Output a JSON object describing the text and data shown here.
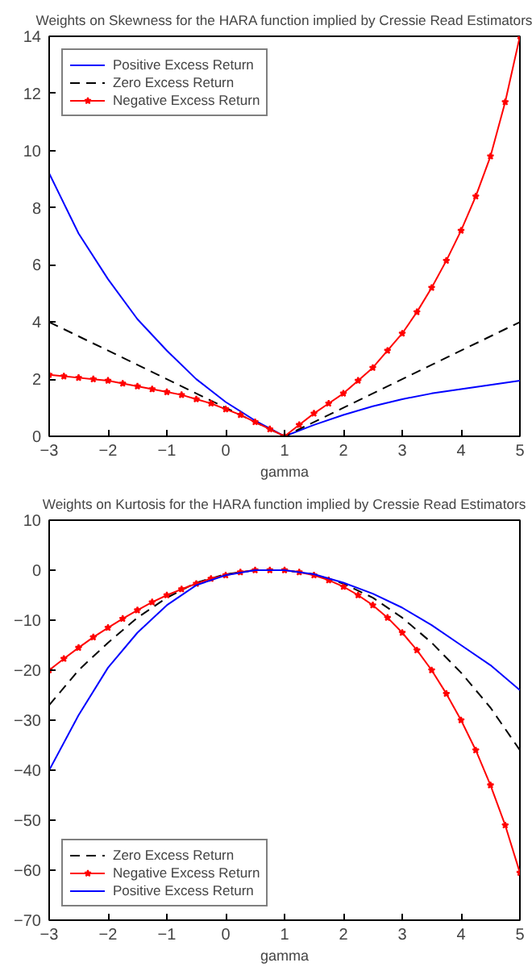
{
  "chart_data": [
    {
      "type": "line",
      "title": "Weights on Skewness for the HARA function implied by Cressie Read Estimators",
      "xlabel": "gamma",
      "xlim": [
        -3,
        5
      ],
      "ylim": [
        0,
        14
      ],
      "xticks": [
        -3,
        -2,
        -1,
        0,
        1,
        2,
        3,
        4,
        5
      ],
      "yticks": [
        0,
        2,
        4,
        6,
        8,
        10,
        12,
        14
      ],
      "grid": false,
      "legend": "top left",
      "series": [
        {
          "name": "Positive Excess Return",
          "color": "#0000ff",
          "line_style": "solid",
          "marker": "none",
          "x": [
            -3,
            -2.5,
            -2,
            -1.5,
            -1,
            -0.5,
            0,
            0.5,
            1,
            1.5,
            2,
            2.5,
            3,
            3.5,
            4,
            4.5,
            5
          ],
          "values": [
            9.2,
            7.1,
            5.5,
            4.1,
            3.0,
            2.0,
            1.2,
            0.55,
            0,
            0.4,
            0.75,
            1.05,
            1.3,
            1.5,
            1.65,
            1.8,
            1.95
          ]
        },
        {
          "name": "Zero Excess Return",
          "color": "#000000",
          "line_style": "dashed",
          "marker": "none",
          "x": [
            -3,
            1,
            5
          ],
          "values": [
            4,
            0,
            4
          ]
        },
        {
          "name": "Negative Excess Return",
          "color": "#ff0000",
          "line_style": "solid",
          "marker": "star",
          "x": [
            -3,
            -2.75,
            -2.5,
            -2.25,
            -2,
            -1.75,
            -1.5,
            -1.25,
            -1,
            -0.75,
            -0.5,
            -0.25,
            0,
            0.25,
            0.5,
            0.75,
            1,
            1.25,
            1.5,
            1.75,
            2,
            2.25,
            2.5,
            2.75,
            3,
            3.25,
            3.5,
            3.75,
            4,
            4.25,
            4.5,
            4.75,
            5
          ],
          "values": [
            2.15,
            2.1,
            2.05,
            2.0,
            1.95,
            1.85,
            1.75,
            1.65,
            1.55,
            1.45,
            1.3,
            1.15,
            0.95,
            0.75,
            0.5,
            0.25,
            0,
            0.4,
            0.8,
            1.15,
            1.5,
            1.95,
            2.4,
            3.0,
            3.6,
            4.35,
            5.2,
            6.15,
            7.2,
            8.4,
            9.8,
            11.7,
            14
          ]
        }
      ]
    },
    {
      "type": "line",
      "title": "Weights on Kurtosis for the HARA function implied by Cressie Read Estimators",
      "xlabel": "gamma",
      "xlim": [
        -3,
        5
      ],
      "ylim": [
        -70,
        10
      ],
      "xticks": [
        -3,
        -2,
        -1,
        0,
        1,
        2,
        3,
        4,
        5
      ],
      "yticks": [
        -70,
        -60,
        -50,
        -40,
        -30,
        -20,
        -10,
        0,
        10
      ],
      "grid": false,
      "legend": "bottom left",
      "series": [
        {
          "name": "Zero Excess Return",
          "color": "#000000",
          "line_style": "dashed",
          "marker": "none",
          "x": [
            -3,
            -2.5,
            -2,
            -1.5,
            -1,
            -0.5,
            0,
            0.5,
            1,
            1.5,
            2,
            2.5,
            3,
            3.5,
            4,
            4.5,
            5
          ],
          "values": [
            -27,
            -20,
            -14.5,
            -9.5,
            -5.5,
            -2.5,
            -0.8,
            0,
            0,
            -0.8,
            -2.7,
            -5.5,
            -9.5,
            -14.5,
            -20.5,
            -27.5,
            -36
          ]
        },
        {
          "name": "Negative Excess Return",
          "color": "#ff0000",
          "line_style": "solid",
          "marker": "star",
          "x": [
            -3,
            -2.75,
            -2.5,
            -2.25,
            -2,
            -1.75,
            -1.5,
            -1.25,
            -1,
            -0.75,
            -0.5,
            -0.25,
            0,
            0.25,
            0.5,
            0.75,
            1,
            1.25,
            1.5,
            1.75,
            2,
            2.25,
            2.5,
            2.75,
            3,
            3.25,
            3.5,
            3.75,
            4,
            4.25,
            4.5,
            4.75,
            5
          ],
          "values": [
            -20,
            -17.7,
            -15.5,
            -13.4,
            -11.5,
            -9.7,
            -8,
            -6.4,
            -5,
            -3.8,
            -2.7,
            -1.7,
            -1,
            -0.4,
            0,
            0,
            0,
            -0.4,
            -1,
            -2,
            -3.3,
            -5,
            -7,
            -9.5,
            -12.5,
            -16,
            -20,
            -24.7,
            -30,
            -36,
            -43,
            -51,
            -60.5
          ]
        },
        {
          "name": "Positive Excess Return",
          "color": "#0000ff",
          "line_style": "solid",
          "marker": "none",
          "x": [
            -3,
            -2.5,
            -2,
            -1.5,
            -1,
            -0.5,
            0,
            0.5,
            1,
            1.5,
            2,
            2.5,
            3,
            3.5,
            4,
            4.5,
            5
          ],
          "values": [
            -40,
            -29,
            -19.5,
            -12.5,
            -7,
            -3,
            -1,
            0,
            0,
            -0.8,
            -2.5,
            -4.7,
            -7.5,
            -11,
            -15,
            -19,
            -24
          ]
        }
      ]
    }
  ]
}
